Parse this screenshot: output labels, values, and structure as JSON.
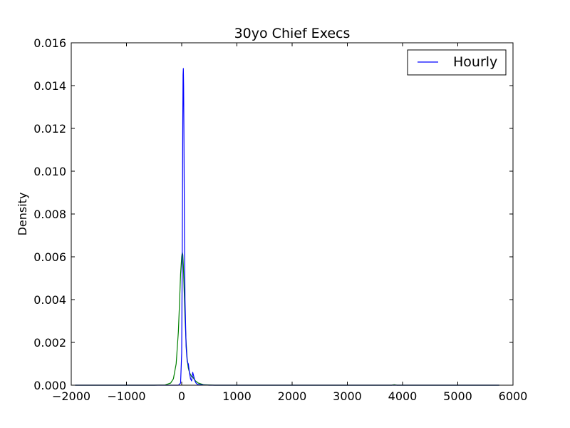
{
  "chart_data": {
    "type": "line",
    "title": "30yo Chief Execs",
    "xlabel": "",
    "ylabel": "Density",
    "xlim": [
      -2000,
      6000
    ],
    "ylim": [
      0,
      0.016
    ],
    "xticks": [
      -2000,
      -1000,
      0,
      1000,
      2000,
      3000,
      4000,
      5000,
      6000
    ],
    "xtick_labels": [
      "−2000",
      "−1000",
      "0",
      "1000",
      "2000",
      "3000",
      "4000",
      "5000",
      "6000"
    ],
    "yticks": [
      0.0,
      0.002,
      0.004,
      0.006,
      0.008,
      0.01,
      0.012,
      0.014,
      0.016
    ],
    "ytick_labels": [
      "0.000",
      "0.002",
      "0.004",
      "0.006",
      "0.008",
      "0.010",
      "0.012",
      "0.014",
      "0.016"
    ],
    "grid": false,
    "legend": {
      "position": "top-right",
      "entries": [
        "Hourly"
      ]
    },
    "series": [
      {
        "name": "Hourly",
        "color": "#0000ff",
        "x": [
          -1930,
          -300,
          -60,
          -20,
          0,
          10,
          20,
          25,
          30,
          35,
          40,
          50,
          60,
          80,
          100,
          120,
          140,
          160,
          180,
          200,
          220,
          240,
          260,
          280,
          300,
          350,
          400,
          500,
          700,
          1000,
          2000,
          3000,
          4000,
          5000,
          5750
        ],
        "y": [
          0,
          0,
          0,
          0.0001,
          0.0015,
          0.006,
          0.0125,
          0.0145,
          0.0148,
          0.014,
          0.012,
          0.0072,
          0.004,
          0.0018,
          0.0011,
          0.001,
          0.0006,
          0.0003,
          0.0002,
          0.0006,
          0.0004,
          0.0002,
          0.0001,
          5e-05,
          3e-05,
          2e-05,
          1e-05,
          0,
          0,
          0,
          0,
          0,
          0,
          0,
          0
        ]
      },
      {
        "color": "#008000",
        "x": [
          -1930,
          -500,
          -300,
          -200,
          -150,
          -100,
          -60,
          -40,
          -20,
          0,
          10,
          20,
          30,
          40,
          50,
          60,
          80,
          100,
          120,
          140,
          160,
          180,
          200,
          220,
          250,
          300,
          400,
          600,
          1000,
          2000,
          3000,
          3800,
          3850,
          3900,
          4000,
          5000,
          5750
        ],
        "y": [
          0,
          0,
          1e-05,
          0.0001,
          0.0003,
          0.001,
          0.0025,
          0.0038,
          0.0052,
          0.006,
          0.0062,
          0.0061,
          0.0056,
          0.0048,
          0.004,
          0.0032,
          0.002,
          0.0012,
          0.0008,
          0.0006,
          0.0005,
          0.0004,
          0.0004,
          0.0003,
          0.0002,
          0.0001,
          2e-05,
          0,
          0,
          0,
          0,
          0,
          2e-05,
          0,
          0,
          0,
          0
        ]
      }
    ]
  }
}
